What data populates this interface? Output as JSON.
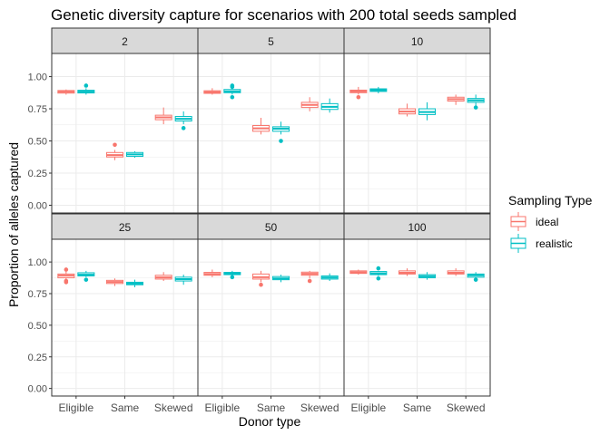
{
  "chart_data": {
    "type": "boxplot",
    "title": "Genetic diversity capture for scenarios with 200 total seeds sampled",
    "xlabel": "Donor type",
    "ylabel": "Proportion of alleles captured",
    "categories": [
      "Eligible",
      "Same",
      "Skewed"
    ],
    "yticks": [
      "0.00",
      "0.25",
      "0.50",
      "0.75",
      "1.00"
    ],
    "ylim": [
      -0.06,
      1.18
    ],
    "grid": true,
    "legend": {
      "title": "Sampling Type",
      "position": "right",
      "entries": [
        {
          "name": "ideal",
          "color": "#F8766D"
        },
        {
          "name": "realistic",
          "color": "#00BFC4"
        }
      ]
    },
    "facets": [
      {
        "label": "2",
        "series": [
          {
            "name": "ideal",
            "boxes": [
              {
                "min": 0.86,
                "q1": 0.872,
                "median": 0.882,
                "q3": 0.892,
                "max": 0.9,
                "outliers": []
              },
              {
                "min": 0.35,
                "q1": 0.375,
                "median": 0.39,
                "q3": 0.41,
                "max": 0.43,
                "outliers": [
                  0.47
                ]
              },
              {
                "min": 0.63,
                "q1": 0.665,
                "median": 0.683,
                "q3": 0.7,
                "max": 0.76,
                "outliers": []
              }
            ]
          },
          {
            "name": "realistic",
            "boxes": [
              {
                "min": 0.86,
                "q1": 0.873,
                "median": 0.883,
                "q3": 0.894,
                "max": 0.91,
                "outliers": [
                  0.93
                ]
              },
              {
                "min": 0.37,
                "q1": 0.38,
                "median": 0.395,
                "q3": 0.41,
                "max": 0.42,
                "outliers": []
              },
              {
                "min": 0.63,
                "q1": 0.655,
                "median": 0.672,
                "q3": 0.69,
                "max": 0.73,
                "outliers": [
                  0.6
                ]
              }
            ]
          }
        ]
      },
      {
        "label": "5",
        "series": [
          {
            "name": "ideal",
            "boxes": [
              {
                "min": 0.86,
                "q1": 0.87,
                "median": 0.88,
                "q3": 0.89,
                "max": 0.91,
                "outliers": []
              },
              {
                "min": 0.55,
                "q1": 0.575,
                "median": 0.598,
                "q3": 0.62,
                "max": 0.68,
                "outliers": []
              },
              {
                "min": 0.73,
                "q1": 0.76,
                "median": 0.78,
                "q3": 0.8,
                "max": 0.84,
                "outliers": []
              }
            ]
          },
          {
            "name": "realistic",
            "boxes": [
              {
                "min": 0.86,
                "q1": 0.875,
                "median": 0.885,
                "q3": 0.9,
                "max": 0.91,
                "outliers": [
                  0.84,
                  0.92,
                  0.93
                ]
              },
              {
                "min": 0.55,
                "q1": 0.575,
                "median": 0.595,
                "q3": 0.61,
                "max": 0.65,
                "outliers": [
                  0.5
                ]
              },
              {
                "min": 0.72,
                "q1": 0.745,
                "median": 0.765,
                "q3": 0.79,
                "max": 0.83,
                "outliers": []
              }
            ]
          }
        ]
      },
      {
        "label": "10",
        "series": [
          {
            "name": "ideal",
            "boxes": [
              {
                "min": 0.86,
                "q1": 0.875,
                "median": 0.885,
                "q3": 0.895,
                "max": 0.92,
                "outliers": [
                  0.84
                ]
              },
              {
                "min": 0.69,
                "q1": 0.71,
                "median": 0.728,
                "q3": 0.75,
                "max": 0.79,
                "outliers": []
              },
              {
                "min": 0.78,
                "q1": 0.81,
                "median": 0.825,
                "q3": 0.84,
                "max": 0.86,
                "outliers": []
              }
            ]
          },
          {
            "name": "realistic",
            "boxes": [
              {
                "min": 0.87,
                "q1": 0.885,
                "median": 0.895,
                "q3": 0.905,
                "max": 0.92,
                "outliers": []
              },
              {
                "min": 0.66,
                "q1": 0.705,
                "median": 0.725,
                "q3": 0.75,
                "max": 0.8,
                "outliers": []
              },
              {
                "min": 0.77,
                "q1": 0.8,
                "median": 0.815,
                "q3": 0.83,
                "max": 0.86,
                "outliers": [
                  0.76
                ]
              }
            ]
          }
        ]
      },
      {
        "label": "25",
        "series": [
          {
            "name": "ideal",
            "boxes": [
              {
                "min": 0.86,
                "q1": 0.875,
                "median": 0.892,
                "q3": 0.905,
                "max": 0.93,
                "outliers": [
                  0.84,
                  0.85,
                  0.94
                ]
              },
              {
                "min": 0.81,
                "q1": 0.83,
                "median": 0.842,
                "q3": 0.855,
                "max": 0.87,
                "outliers": []
              },
              {
                "min": 0.85,
                "q1": 0.865,
                "median": 0.878,
                "q3": 0.895,
                "max": 0.92,
                "outliers": []
              }
            ]
          },
          {
            "name": "realistic",
            "boxes": [
              {
                "min": 0.88,
                "q1": 0.89,
                "median": 0.9,
                "q3": 0.915,
                "max": 0.93,
                "outliers": [
                  0.86
                ]
              },
              {
                "min": 0.8,
                "q1": 0.82,
                "median": 0.83,
                "q3": 0.84,
                "max": 0.86,
                "outliers": []
              },
              {
                "min": 0.82,
                "q1": 0.85,
                "median": 0.865,
                "q3": 0.88,
                "max": 0.9,
                "outliers": []
              }
            ]
          }
        ]
      },
      {
        "label": "50",
        "series": [
          {
            "name": "ideal",
            "boxes": [
              {
                "min": 0.88,
                "q1": 0.895,
                "median": 0.905,
                "q3": 0.918,
                "max": 0.94,
                "outliers": []
              },
              {
                "min": 0.84,
                "q1": 0.865,
                "median": 0.88,
                "q3": 0.905,
                "max": 0.93,
                "outliers": [
                  0.82
                ]
              },
              {
                "min": 0.87,
                "q1": 0.895,
                "median": 0.907,
                "q3": 0.92,
                "max": 0.93,
                "outliers": [
                  0.85
                ]
              }
            ]
          },
          {
            "name": "realistic",
            "boxes": [
              {
                "min": 0.89,
                "q1": 0.9,
                "median": 0.908,
                "q3": 0.918,
                "max": 0.93,
                "outliers": [
                  0.88
                ]
              },
              {
                "min": 0.84,
                "q1": 0.86,
                "median": 0.87,
                "q3": 0.885,
                "max": 0.9,
                "outliers": []
              },
              {
                "min": 0.85,
                "q1": 0.865,
                "median": 0.877,
                "q3": 0.89,
                "max": 0.91,
                "outliers": []
              }
            ]
          }
        ]
      },
      {
        "label": "100",
        "series": [
          {
            "name": "ideal",
            "boxes": [
              {
                "min": 0.9,
                "q1": 0.91,
                "median": 0.918,
                "q3": 0.93,
                "max": 0.94,
                "outliers": []
              },
              {
                "min": 0.89,
                "q1": 0.905,
                "median": 0.915,
                "q3": 0.93,
                "max": 0.95,
                "outliers": []
              },
              {
                "min": 0.89,
                "q1": 0.905,
                "median": 0.915,
                "q3": 0.93,
                "max": 0.95,
                "outliers": []
              }
            ]
          },
          {
            "name": "realistic",
            "boxes": [
              {
                "min": 0.89,
                "q1": 0.9,
                "median": 0.91,
                "q3": 0.925,
                "max": 0.93,
                "outliers": [
                  0.87,
                  0.95
                ]
              },
              {
                "min": 0.86,
                "q1": 0.875,
                "median": 0.887,
                "q3": 0.9,
                "max": 0.92,
                "outliers": []
              },
              {
                "min": 0.87,
                "q1": 0.88,
                "median": 0.895,
                "q3": 0.905,
                "max": 0.92,
                "outliers": [
                  0.86
                ]
              }
            ]
          }
        ]
      }
    ]
  }
}
